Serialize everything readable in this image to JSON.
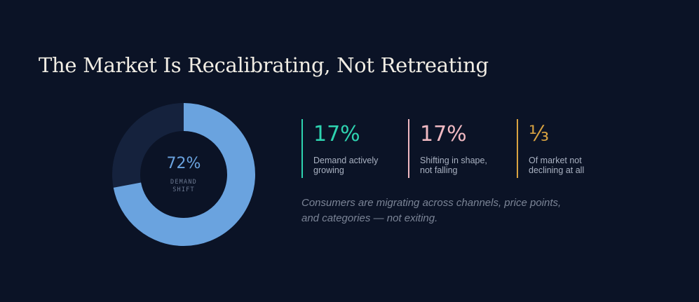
{
  "colors": {
    "background": "#0b1326",
    "title": "#f1ede4",
    "donut_fill": "#6aa3df",
    "donut_track": "#15223d",
    "stat_teal": "#2ed3b0",
    "stat_pink": "#f0b9c2",
    "stat_gold": "#d9a341",
    "body_text": "#a9b1c1",
    "muted_text": "#7b8496"
  },
  "header": {
    "title": "The Market Is Recalibrating, Not Retreating"
  },
  "donut": {
    "value_label": "72%",
    "label_line1": "DEMAND",
    "label_line2": "SHIFT",
    "fraction": 0.72
  },
  "stats": [
    {
      "value": "17%",
      "desc_line1": "Demand actively",
      "desc_line2": "growing"
    },
    {
      "value": "17%",
      "desc_line1": "Shifting in shape,",
      "desc_line2": "not falling"
    },
    {
      "value": "⅓",
      "desc_line1": "Of market not",
      "desc_line2": "declining at all"
    }
  ],
  "note": {
    "line1": "Consumers are migrating across channels, price points,",
    "line2": "and categories — not exiting."
  }
}
